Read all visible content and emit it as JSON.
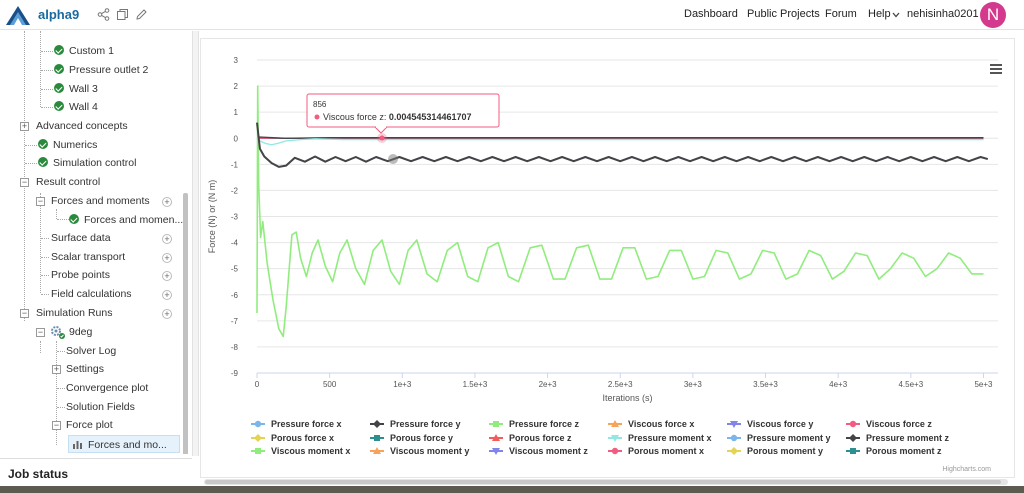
{
  "app": {
    "name": "alpha9"
  },
  "topnav": {
    "links": [
      "Dashboard",
      "Public Projects",
      "Forum",
      "Help"
    ],
    "user": "nehisinha0201",
    "avatar_letter": "N",
    "avatar_color": "#d33a8e"
  },
  "sidebar": {
    "items": [
      {
        "label": "Custom 1",
        "status": "ok"
      },
      {
        "label": "Pressure outlet 2",
        "status": "ok"
      },
      {
        "label": "Wall 3",
        "status": "ok"
      },
      {
        "label": "Wall 4",
        "status": "ok"
      },
      {
        "label": "Advanced concepts"
      },
      {
        "label": "Numerics",
        "status": "ok"
      },
      {
        "label": "Simulation control",
        "status": "ok"
      },
      {
        "label": "Result control"
      },
      {
        "label": "Forces and moments"
      },
      {
        "label": "Forces and momen...",
        "status": "ok"
      },
      {
        "label": "Surface data"
      },
      {
        "label": "Scalar transport"
      },
      {
        "label": "Probe points"
      },
      {
        "label": "Field calculations"
      },
      {
        "label": "Simulation Runs"
      },
      {
        "label": "9deg"
      },
      {
        "label": "Solver Log"
      },
      {
        "label": "Settings"
      },
      {
        "label": "Convergence plot"
      },
      {
        "label": "Solution Fields"
      },
      {
        "label": "Force plot"
      },
      {
        "label": "Forces and mo..."
      }
    ],
    "job_status": "Job status"
  },
  "tooltip": {
    "x": "856",
    "series": "Viscous force z",
    "value": "0.004545314461707"
  },
  "credits": "Highcharts.com",
  "chart_data": {
    "type": "line",
    "title": "",
    "xlabel": "Iterations (s)",
    "ylabel": "Force (N) or (N m)",
    "xlim": [
      0,
      5100
    ],
    "ylim": [
      -9,
      3
    ],
    "x_ticks": [
      "0",
      "500",
      "1e+3",
      "1.5e+3",
      "2e+3",
      "2.5e+3",
      "3e+3",
      "3.5e+3",
      "4e+3",
      "4.5e+3",
      "5e+3"
    ],
    "y_ticks": [
      "3",
      "2",
      "1",
      "0",
      "-1",
      "-2",
      "-3",
      "-4",
      "-5",
      "-6",
      "-7",
      "-8",
      "-9"
    ],
    "grid": true,
    "legend_placement": "bottom",
    "series": [
      {
        "name": "Pressure force x",
        "color": "#7cb5ec",
        "marker": "circle"
      },
      {
        "name": "Pressure force y",
        "color": "#434348",
        "marker": "diamond"
      },
      {
        "name": "Pressure force z",
        "color": "#90ed7d",
        "marker": "square"
      },
      {
        "name": "Viscous force x",
        "color": "#f7a35c",
        "marker": "triangle"
      },
      {
        "name": "Viscous force y",
        "color": "#8085e9",
        "marker": "triangle-down"
      },
      {
        "name": "Viscous force z",
        "color": "#f15c80",
        "marker": "circle"
      },
      {
        "name": "Porous force x",
        "color": "#e4d354",
        "marker": "diamond"
      },
      {
        "name": "Porous force y",
        "color": "#2b908f",
        "marker": "square"
      },
      {
        "name": "Porous force z",
        "color": "#f45b5b",
        "marker": "triangle"
      },
      {
        "name": "Pressure moment x",
        "color": "#91e8e1",
        "marker": "triangle-down"
      },
      {
        "name": "Pressure moment y",
        "color": "#7cb5ec",
        "marker": "circle"
      },
      {
        "name": "Pressure moment z",
        "color": "#434348",
        "marker": "diamond"
      },
      {
        "name": "Viscous moment x",
        "color": "#90ed7d",
        "marker": "square"
      },
      {
        "name": "Viscous moment y",
        "color": "#f7a35c",
        "marker": "triangle"
      },
      {
        "name": "Viscous moment z",
        "color": "#8085e9",
        "marker": "triangle-down"
      },
      {
        "name": "Porous moment x",
        "color": "#f15c80",
        "marker": "circle"
      },
      {
        "name": "Porous moment y",
        "color": "#e4d354",
        "marker": "diamond"
      },
      {
        "name": "Porous moment z",
        "color": "#2b908f",
        "marker": "square"
      }
    ],
    "curves": {
      "pressure_force_x": {
        "x": [
          0,
          100,
          1000,
          2000,
          3000,
          4000,
          5000
        ],
        "y": [
          0.02,
          0.0,
          0.0,
          0.0,
          0.0,
          0.0,
          0.0
        ]
      },
      "pressure_force_y": {
        "x": [
          0,
          20,
          50,
          100,
          150,
          200,
          260,
          330,
          400,
          470,
          540,
          610,
          680,
          750,
          820,
          900,
          980,
          1060,
          1140,
          1220,
          1300,
          1380,
          1460,
          1540,
          1620,
          1700,
          1780,
          1860,
          1940,
          2020,
          2100,
          2180,
          2260,
          2340,
          2420,
          2500,
          2580,
          2660,
          2740,
          2820,
          2900,
          2980,
          3060,
          3140,
          3220,
          3300,
          3380,
          3460,
          3540,
          3620,
          3700,
          3780,
          3860,
          3940,
          4020,
          4100,
          4180,
          4260,
          4340,
          4420,
          4500,
          4580,
          4660,
          4740,
          4820,
          4900,
          4980,
          5030
        ],
        "y": [
          0.6,
          -0.4,
          -0.7,
          -0.95,
          -1.1,
          -1.05,
          -0.75,
          -0.9,
          -0.7,
          -0.9,
          -0.72,
          -0.88,
          -0.72,
          -0.9,
          -0.72,
          -0.88,
          -0.72,
          -0.88,
          -0.72,
          -0.88,
          -0.72,
          -0.88,
          -0.72,
          -0.88,
          -0.72,
          -0.88,
          -0.72,
          -0.88,
          -0.72,
          -0.88,
          -0.72,
          -0.88,
          -0.72,
          -0.88,
          -0.72,
          -0.88,
          -0.72,
          -0.88,
          -0.72,
          -0.88,
          -0.72,
          -0.88,
          -0.72,
          -0.88,
          -0.72,
          -0.88,
          -0.72,
          -0.88,
          -0.72,
          -0.88,
          -0.72,
          -0.88,
          -0.72,
          -0.88,
          -0.72,
          -0.88,
          -0.72,
          -0.88,
          -0.72,
          -0.88,
          -0.72,
          -0.88,
          -0.72,
          -0.88,
          -0.72,
          -0.88,
          -0.72,
          -0.8
        ]
      },
      "pressure_force_z": {
        "x": [
          0,
          5,
          12,
          25,
          40,
          70,
          110,
          150,
          180,
          200,
          240,
          270,
          300,
          340,
          380,
          420,
          470,
          520,
          570,
          620,
          680,
          740,
          800,
          860,
          920,
          980,
          1040,
          1100,
          1170,
          1240,
          1310,
          1380,
          1450,
          1520,
          1590,
          1660,
          1730,
          1800,
          1880,
          1960,
          2040,
          2120,
          2200,
          2280,
          2360,
          2440,
          2520,
          2600,
          2680,
          2760,
          2840,
          2920,
          3000,
          3080,
          3160,
          3240,
          3320,
          3400,
          3480,
          3560,
          3640,
          3720,
          3800,
          3880,
          3960,
          4040,
          4120,
          4200,
          4280,
          4360,
          4440,
          4520,
          4600,
          4680,
          4760,
          4840,
          4920,
          5000
        ],
        "y": [
          -6.7,
          2.0,
          -1.8,
          -3.8,
          -3.2,
          -4.8,
          -6.2,
          -7.3,
          -7.6,
          -6.5,
          -3.7,
          -3.6,
          -4.6,
          -5.3,
          -4.4,
          -3.9,
          -4.9,
          -5.5,
          -4.4,
          -3.9,
          -5.0,
          -5.6,
          -4.3,
          -3.9,
          -5.1,
          -5.6,
          -4.3,
          -3.9,
          -5.2,
          -5.5,
          -4.3,
          -4.0,
          -5.3,
          -5.5,
          -4.2,
          -4.0,
          -5.3,
          -5.5,
          -4.2,
          -4.1,
          -5.4,
          -5.4,
          -4.2,
          -4.1,
          -5.4,
          -5.4,
          -4.2,
          -4.2,
          -5.4,
          -5.3,
          -4.3,
          -4.3,
          -5.4,
          -5.3,
          -4.3,
          -4.4,
          -5.4,
          -5.2,
          -4.3,
          -4.4,
          -5.4,
          -5.2,
          -4.3,
          -4.5,
          -5.4,
          -5.1,
          -4.4,
          -4.5,
          -5.4,
          -5.0,
          -4.4,
          -4.6,
          -5.3,
          -5.0,
          -4.4,
          -4.6,
          -5.2,
          -5.2
        ]
      },
      "viscous_force_z": {
        "x": [
          0,
          100,
          1000,
          2000,
          3000,
          4000,
          5000
        ],
        "y": [
          0.0,
          0.005,
          0.0045,
          0.0045,
          0.0045,
          0.0045,
          0.0045
        ]
      },
      "pressure_moment_x": {
        "x": [
          0,
          20,
          60,
          100,
          140,
          200,
          300,
          400,
          600,
          1000,
          2000,
          3000,
          4000,
          5000
        ],
        "y": [
          0.0,
          -0.1,
          -0.2,
          -0.25,
          -0.2,
          -0.1,
          -0.05,
          -0.02,
          -0.05,
          -0.05,
          -0.05,
          -0.05,
          -0.05,
          -0.05
        ]
      },
      "porous_force_y": {
        "x": [
          0,
          1000,
          2000,
          3000,
          4000,
          5000
        ],
        "y": [
          0.0,
          0.0,
          0.0,
          0.0,
          0.0,
          0.0
        ]
      },
      "pressure_moment_z": {
        "x": [
          0,
          200,
          500,
          1000,
          2000,
          3000,
          4000,
          5000
        ],
        "y": [
          0.05,
          0.0,
          0.02,
          0.02,
          0.02,
          0.02,
          0.02,
          0.02
        ]
      }
    }
  }
}
